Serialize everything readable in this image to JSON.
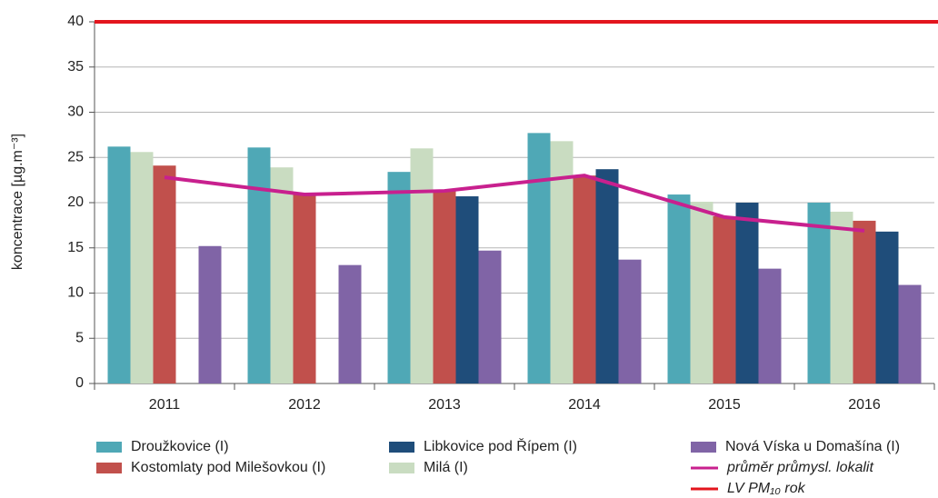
{
  "chart_data": {
    "type": "bar",
    "y_label": "koncentrace [µg.m⁻³]",
    "categories": [
      "2011",
      "2012",
      "2013",
      "2014",
      "2015",
      "2016"
    ],
    "series": [
      {
        "name": "Droužkovice (I)",
        "color": "#4fa8b6",
        "values": [
          26.2,
          26.1,
          23.4,
          27.7,
          20.9,
          20.0
        ]
      },
      {
        "name": "Milá (I)",
        "color": "#c9dcc1",
        "values": [
          25.6,
          23.9,
          26.0,
          26.8,
          20.1,
          19.0
        ]
      },
      {
        "name": "Kostomlaty pod Milešovkou (I)",
        "color": "#c1504c",
        "values": [
          24.1,
          21.0,
          21.4,
          23.0,
          18.5,
          18.0
        ]
      },
      {
        "name": "Libkovice pod Řípem (I)",
        "color": "#1f4d7a",
        "values": [
          null,
          null,
          20.7,
          23.7,
          20.0,
          16.8
        ]
      },
      {
        "name": "Nová Víska u Domašína (I)",
        "color": "#8064a6",
        "values": [
          15.2,
          13.1,
          14.7,
          13.7,
          12.7,
          10.9
        ]
      },
      {
        "name": "průměr průmysl. lokalit",
        "color": "#c8208e",
        "type": "line",
        "values": [
          22.8,
          20.9,
          21.3,
          23.0,
          18.4,
          16.9
        ]
      }
    ],
    "limit": {
      "name": "LV PM₁₀ rok",
      "color": "#e3151d",
      "value": 40
    },
    "ylim": [
      0,
      40
    ],
    "yticks": [
      0,
      5,
      10,
      15,
      20,
      25,
      30,
      35,
      40
    ],
    "grid": true
  }
}
